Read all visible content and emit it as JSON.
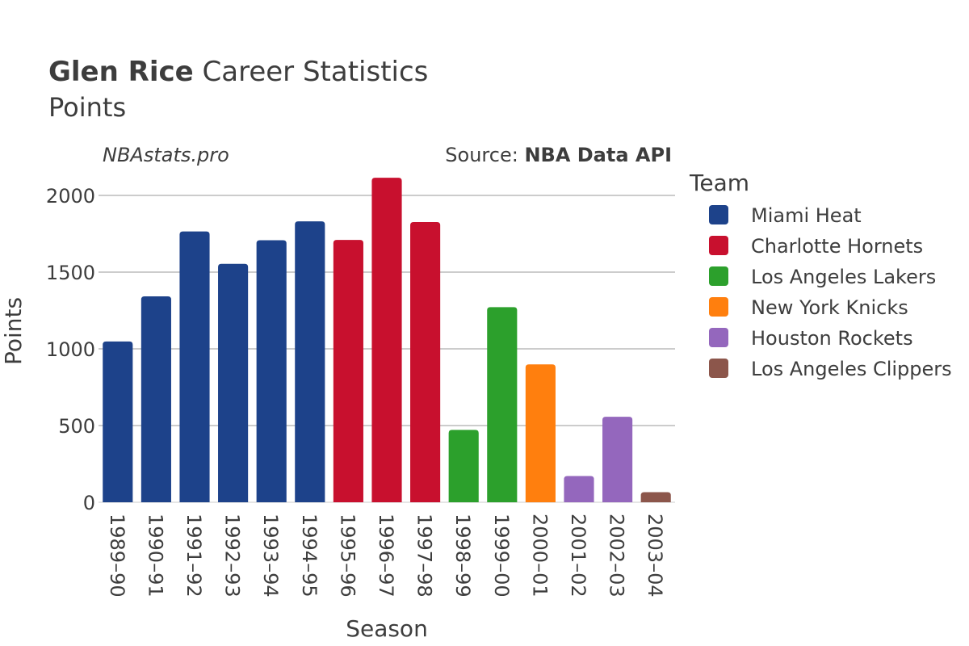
{
  "header": {
    "title_bold": "Glen Rice",
    "title_rest": " Career Statistics",
    "subtitle": "Points",
    "watermark": "NBAstats.pro",
    "source_prefix": "Source: ",
    "source_name": "NBA Data API"
  },
  "legend": {
    "title": "Team",
    "items": [
      {
        "label": "Miami Heat",
        "color": "#1d428a"
      },
      {
        "label": "Charlotte Hornets",
        "color": "#c8102e"
      },
      {
        "label": "Los Angeles Lakers",
        "color": "#2ca02c"
      },
      {
        "label": "New York Knicks",
        "color": "#ff7f0e"
      },
      {
        "label": "Houston Rockets",
        "color": "#9467bd"
      },
      {
        "label": "Los Angeles Clippers",
        "color": "#8c564b"
      }
    ]
  },
  "chart_data": {
    "type": "bar",
    "title": "Glen Rice Career Statistics",
    "subtitle": "Points",
    "xlabel": "Season",
    "ylabel": "Points",
    "ylim": [
      0,
      2200
    ],
    "yticks": [
      0,
      500,
      1000,
      1500,
      2000
    ],
    "grid": true,
    "legend_position": "right",
    "categories": [
      "1989–90",
      "1990–91",
      "1991–92",
      "1992–93",
      "1993–94",
      "1994–95",
      "1995–96",
      "1996–97",
      "1997–98",
      "1998–99",
      "1999–00",
      "2000–01",
      "2001–02",
      "2002–03",
      "2003–04"
    ],
    "values": [
      1048,
      1342,
      1765,
      1554,
      1708,
      1831,
      1710,
      2115,
      1826,
      472,
      1272,
      899,
      171,
      557,
      66
    ],
    "teams": [
      "Miami Heat",
      "Miami Heat",
      "Miami Heat",
      "Miami Heat",
      "Miami Heat",
      "Miami Heat",
      "Charlotte Hornets",
      "Charlotte Hornets",
      "Charlotte Hornets",
      "Los Angeles Lakers",
      "Los Angeles Lakers",
      "New York Knicks",
      "Houston Rockets",
      "Houston Rockets",
      "Los Angeles Clippers"
    ]
  }
}
